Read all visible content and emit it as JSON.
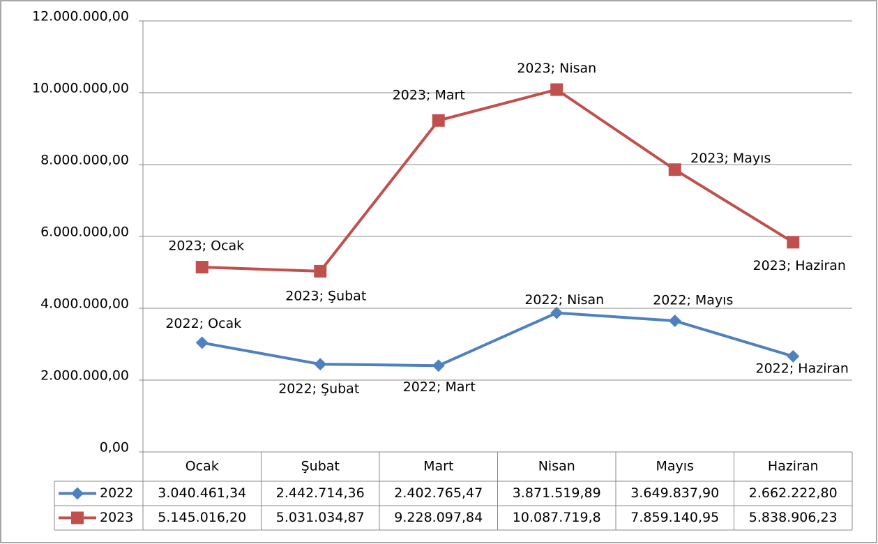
{
  "chart_data": {
    "type": "line",
    "categories": [
      "Ocak",
      "Şubat",
      "Mart",
      "Nisan",
      "Mayıs",
      "Haziran"
    ],
    "series": [
      {
        "name": "2022",
        "color": "#4f81bd",
        "marker": "diamond",
        "values": [
          3040461.34,
          2442714.36,
          2402765.47,
          3871519.89,
          3649837.9,
          2662222.8
        ],
        "value_labels": [
          "3.040.461,34",
          "2.442.714,36",
          "2.402.765,47",
          "3.871.519,89",
          "3.649.837,90",
          "2.662.222,80"
        ],
        "point_labels": [
          "2022; Ocak",
          "2022; Şubat",
          "2022; Mart",
          "2022; Nisan",
          "2022; Mayıs",
          "2022; Haziran"
        ]
      },
      {
        "name": "2023",
        "color": "#c0504d",
        "marker": "square",
        "values": [
          5145016.2,
          5031034.87,
          9228097.84,
          10087719.8,
          7859140.95,
          5838906.23
        ],
        "value_labels": [
          "5.145.016,20",
          "5.031.034,87",
          "9.228.097,84",
          "10.087.719,8",
          "7.859.140,95",
          "5.838.906,23"
        ],
        "point_labels": [
          "2023; Ocak",
          "2023; Şubat",
          "2023; Mart",
          "2023; Nisan",
          "2023; Mayıs",
          "2023; Haziran"
        ]
      }
    ],
    "ylim": [
      0,
      12000000
    ],
    "yticks": [
      {
        "value": 0,
        "label": "0,00"
      },
      {
        "value": 2000000,
        "label": "2.000.000,00"
      },
      {
        "value": 4000000,
        "label": "4.000.000,00"
      },
      {
        "value": 6000000,
        "label": "6.000.000,00"
      },
      {
        "value": 8000000,
        "label": "8.000.000,00"
      },
      {
        "value": 10000000,
        "label": "10.000.000,00"
      },
      {
        "value": 12000000,
        "label": "12.000.000,00"
      }
    ],
    "grid": true,
    "data_table": true
  }
}
